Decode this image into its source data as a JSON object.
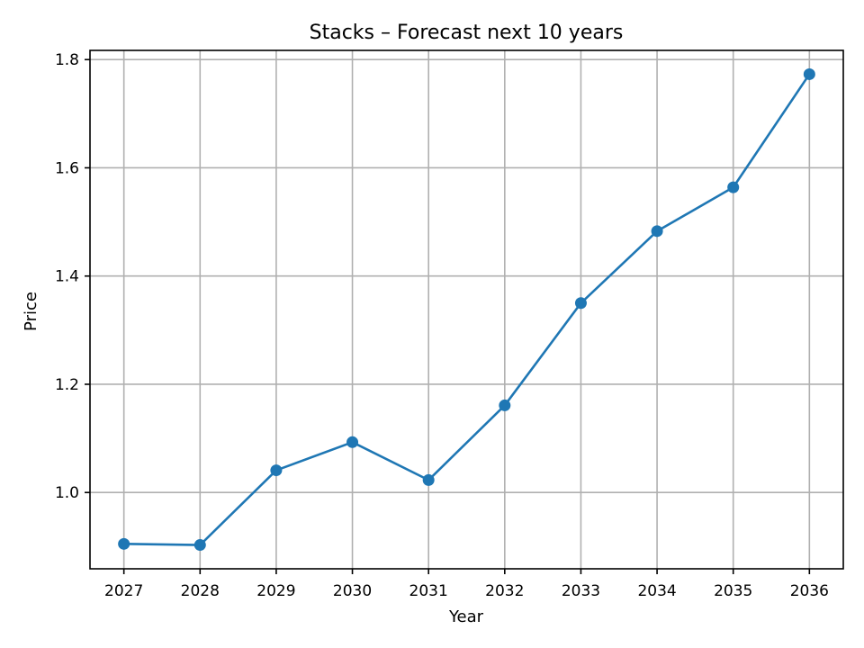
{
  "chart_data": {
    "type": "line",
    "title": "Stacks – Forecast next 10 years",
    "xlabel": "Year",
    "ylabel": "Price",
    "x": [
      "2027",
      "2028",
      "2029",
      "2030",
      "2031",
      "2032",
      "2033",
      "2034",
      "2035",
      "2036"
    ],
    "series": [
      {
        "values": [
          0.905,
          0.903,
          1.041,
          1.093,
          1.023,
          1.161,
          1.35,
          1.483,
          1.564,
          1.773
        ],
        "color": "#1f77b4",
        "marker": "circle"
      }
    ],
    "xlim": [
      2026.555,
      2036.445
    ],
    "ylim": [
      0.859,
      1.817
    ],
    "yticks": [
      "1.0",
      "1.2",
      "1.4",
      "1.6",
      "1.8"
    ],
    "grid": true,
    "legend": "none"
  }
}
